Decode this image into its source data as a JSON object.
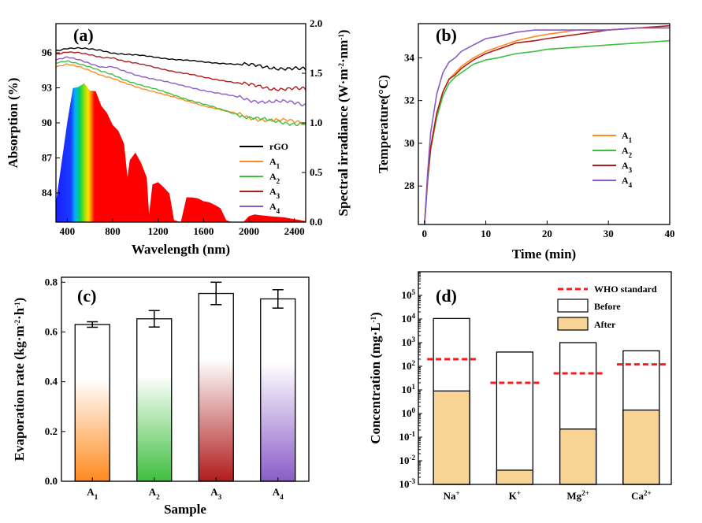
{
  "colors": {
    "rGO": "#000000",
    "A1": "#ff8a1f",
    "A2": "#3fbf3f",
    "A3": "#b01c1c",
    "A4": "#8a5cc8",
    "who": "#ff1a1a",
    "after": "#f7d394"
  },
  "panels": {
    "a": "(a)",
    "b": "(b)",
    "c": "(c)",
    "d": "(d)"
  },
  "chart_data": [
    {
      "type": "line",
      "title": "(a)",
      "xlabel": "Wavelength (nm)",
      "ylabel": "Absorption (%)",
      "y2label": "Spectral irradiance (W·m⁻²·nm⁻¹)",
      "xlim": [
        300,
        2500
      ],
      "ylim": [
        81.5,
        98.5
      ],
      "y2lim": [
        0,
        2.0
      ],
      "xticks": [
        "400",
        "800",
        "1200",
        "1600",
        "2000",
        "2400"
      ],
      "yticks": [
        "84",
        "87",
        "90",
        "93",
        "96"
      ],
      "y2ticks": [
        "0.0",
        "0.5",
        "1.0",
        "1.5",
        "2.0"
      ],
      "legend_position": "center-right",
      "x": [
        300,
        400,
        500,
        600,
        700,
        800,
        900,
        1000,
        1200,
        1400,
        1600,
        1800,
        2000,
        2200,
        2400,
        2500
      ],
      "series": [
        {
          "name": "rGO",
          "values": [
            96.2,
            96.4,
            96.4,
            96.3,
            96.2,
            96.0,
            95.9,
            95.8,
            95.6,
            95.4,
            95.2,
            95.1,
            94.9,
            94.8,
            94.6,
            94.5
          ]
        },
        {
          "name": "A1",
          "values": [
            94.8,
            95.0,
            94.8,
            94.5,
            94.1,
            93.8,
            93.4,
            93.1,
            92.6,
            92.0,
            91.5,
            91.0,
            90.5,
            90.2,
            90.1,
            90.0
          ]
        },
        {
          "name": "A2",
          "values": [
            95.1,
            95.3,
            95.1,
            94.8,
            94.4,
            94.1,
            93.7,
            93.4,
            92.8,
            92.2,
            91.6,
            91.0,
            90.5,
            90.1,
            90.0,
            90.0
          ]
        },
        {
          "name": "A3",
          "values": [
            95.9,
            96.1,
            96.0,
            95.8,
            95.6,
            95.6,
            95.3,
            95.1,
            94.7,
            94.3,
            93.9,
            93.6,
            93.2,
            93.0,
            92.9,
            92.8
          ]
        },
        {
          "name": "A4",
          "values": [
            95.4,
            95.6,
            95.4,
            95.1,
            94.8,
            94.8,
            94.4,
            94.1,
            93.7,
            93.2,
            92.8,
            92.4,
            92.0,
            91.8,
            91.7,
            91.6
          ]
        }
      ],
      "spectrum": {
        "x": [
          280,
          300,
          350,
          400,
          450,
          500,
          550,
          600,
          650,
          700,
          750,
          800,
          850,
          900,
          930,
          950,
          1000,
          1050,
          1100,
          1120,
          1150,
          1200,
          1250,
          1300,
          1340,
          1400,
          1450,
          1500,
          1550,
          1600,
          1650,
          1700,
          1750,
          1800,
          1850,
          1950,
          2000,
          2050,
          2100,
          2200,
          2300,
          2400,
          2500
        ],
        "values": [
          0.0,
          0.2,
          0.6,
          1.05,
          1.35,
          1.42,
          1.4,
          1.38,
          1.32,
          1.22,
          1.1,
          1.02,
          0.92,
          0.82,
          0.45,
          0.65,
          0.7,
          0.62,
          0.45,
          0.08,
          0.38,
          0.42,
          0.35,
          0.3,
          0.02,
          0.0,
          0.25,
          0.26,
          0.24,
          0.22,
          0.2,
          0.18,
          0.14,
          0.02,
          0.0,
          0.0,
          0.06,
          0.08,
          0.07,
          0.06,
          0.05,
          0.03,
          0.01
        ]
      }
    },
    {
      "type": "line",
      "title": "(b)",
      "xlabel": "Time (min)",
      "ylabel": "Temperature(°C)",
      "xlim": [
        -1,
        40
      ],
      "ylim": [
        26.2,
        35.6
      ],
      "xticks": [
        "0",
        "10",
        "20",
        "30",
        "40"
      ],
      "yticks": [
        "28",
        "30",
        "32",
        "34"
      ],
      "legend_position": "center-right",
      "x": [
        0,
        0.5,
        1,
        2,
        3,
        4,
        5,
        6,
        8,
        10,
        12,
        15,
        18,
        20,
        25,
        30,
        35,
        40
      ],
      "series": [
        {
          "name": "A1",
          "values": [
            26.2,
            28.3,
            29.8,
            31.4,
            32.4,
            33.0,
            33.3,
            33.6,
            34.0,
            34.3,
            34.5,
            34.8,
            35.0,
            35.1,
            35.3,
            35.3,
            35.4,
            35.4
          ]
        },
        {
          "name": "A2",
          "values": [
            26.2,
            28.2,
            29.7,
            31.2,
            32.2,
            32.8,
            33.1,
            33.3,
            33.7,
            33.9,
            34.0,
            34.2,
            34.3,
            34.4,
            34.5,
            34.6,
            34.7,
            34.8
          ]
        },
        {
          "name": "A3",
          "values": [
            26.2,
            28.3,
            29.8,
            31.4,
            32.4,
            33.0,
            33.2,
            33.5,
            33.9,
            34.2,
            34.4,
            34.7,
            34.8,
            34.9,
            35.1,
            35.3,
            35.4,
            35.5
          ]
        },
        {
          "name": "A4",
          "values": [
            26.2,
            28.6,
            30.5,
            32.3,
            33.3,
            33.8,
            34.0,
            34.3,
            34.6,
            34.9,
            35.0,
            35.2,
            35.3,
            35.3,
            35.3,
            35.3,
            35.4,
            35.4
          ]
        }
      ]
    },
    {
      "type": "bar",
      "title": "(c)",
      "xlabel": "Sample",
      "ylabel": "Evaporation rate (kg·m⁻²·h⁻¹)",
      "ylim": [
        0,
        0.82
      ],
      "yticks": [
        "0.0",
        "0.2",
        "0.4",
        "0.6",
        "0.8"
      ],
      "categories": [
        "A1",
        "A2",
        "A3",
        "A4"
      ],
      "values": [
        0.63,
        0.653,
        0.755,
        0.733
      ],
      "errors": [
        0.011,
        0.033,
        0.045,
        0.037
      ]
    },
    {
      "type": "bar",
      "title": "(d)",
      "xlabel": "",
      "ylabel": "Concentration (mg·L⁻¹)",
      "log_scale": true,
      "ylim_log10": [
        -3,
        6
      ],
      "yticks": [
        "10⁻³",
        "10⁻²",
        "10⁻¹",
        "10⁰",
        "10¹",
        "10²",
        "10³",
        "10⁴",
        "10⁵"
      ],
      "categories": [
        "Na⁺",
        "K⁺",
        "Mg²⁺",
        "Ca²⁺"
      ],
      "legend_position": "top-right",
      "series": [
        {
          "name": "WHO standard",
          "values": [
            200,
            20,
            50,
            120
          ]
        },
        {
          "name": "Before",
          "values": [
            10500,
            400,
            1000,
            450
          ]
        },
        {
          "name": "After",
          "values": [
            9,
            0.004,
            0.22,
            1.4
          ]
        }
      ]
    }
  ]
}
